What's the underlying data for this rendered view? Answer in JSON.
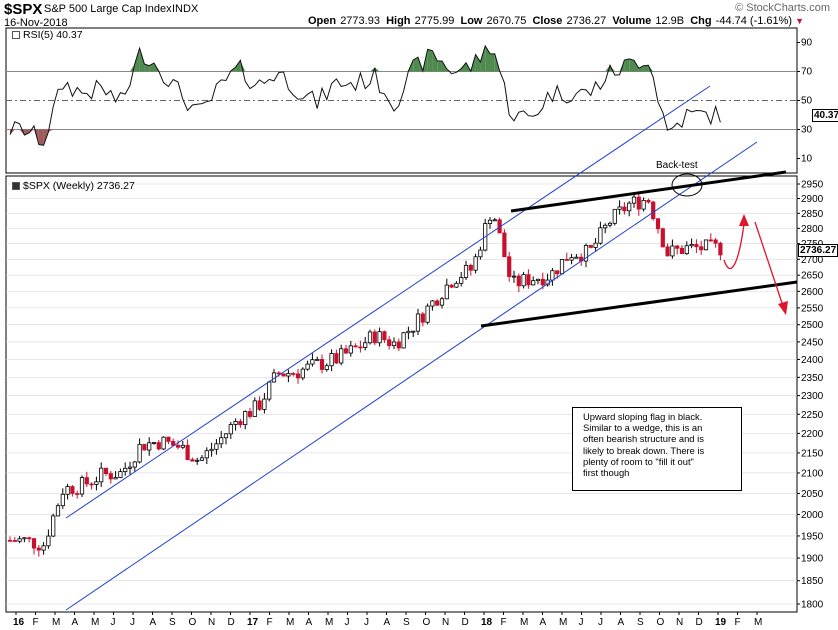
{
  "header": {
    "ticker": "$SPX",
    "name": "S&P 500 Large Cap Index",
    "exchange": "INDX",
    "date": "16-Nov-2018",
    "open_label": "Open",
    "open": "2773.93",
    "high_label": "High",
    "high": "2775.99",
    "low_label": "Low",
    "low": "2670.75",
    "close_label": "Close",
    "close": "2736.27",
    "volume_label": "Volume",
    "volume": "12.9B",
    "chg_label": "Chg",
    "chg": "-44.74 (-1.61%)",
    "brand": "© StockCharts.com"
  },
  "rsi_panel": {
    "label": "RSI(5) 40.37",
    "last_value": "40.37",
    "ticks": [
      "90",
      "70",
      "50",
      "30",
      "10"
    ],
    "overbought": 70,
    "oversold": 30
  },
  "price_panel": {
    "label": "$SPX (Weekly) 2736.27",
    "last_value": "2736.27",
    "ticks": [
      "2950",
      "2900",
      "2850",
      "2800",
      "2750",
      "2700",
      "2650",
      "2600",
      "2550",
      "2500",
      "2450",
      "2400",
      "2350",
      "2300",
      "2250",
      "2200",
      "2150",
      "2100",
      "2050",
      "2000",
      "1950",
      "1900",
      "1850",
      "1800"
    ]
  },
  "x_axis": {
    "labels": [
      "16",
      "F",
      "M",
      "A",
      "M",
      "J",
      "J",
      "A",
      "S",
      "O",
      "N",
      "D",
      "17",
      "F",
      "M",
      "A",
      "M",
      "J",
      "J",
      "A",
      "S",
      "O",
      "N",
      "D",
      "18",
      "F",
      "M",
      "A",
      "M",
      "J",
      "J",
      "A",
      "S",
      "O",
      "N",
      "D",
      "19",
      "F",
      "M"
    ],
    "bold": [
      "16",
      "17",
      "18",
      "19"
    ]
  },
  "annotations": {
    "back_test": "Back-test",
    "note_lines": [
      "Upward sloping flag in black.",
      "Similar to a wedge, this is an",
      "often bearish structure and is",
      "likely to break down. There is",
      "plenty of room to \"fill it out\"",
      "first though"
    ]
  },
  "colors": {
    "up_candle": "#000000",
    "down_candle": "#c8102e",
    "channel": "#1f3fd1",
    "flag": "#000000",
    "arrow": "#e0142a",
    "rsi_overbought_fill": "#4f8a4f",
    "rsi_oversold_fill": "#9e5a5a"
  },
  "chart_data": [
    {
      "type": "line",
      "title": "RSI(5)",
      "x": [
        "2016-01",
        "2016-02",
        "2016-03",
        "2016-04",
        "2016-05",
        "2016-06",
        "2016-07",
        "2016-08",
        "2016-09",
        "2016-10",
        "2016-11",
        "2016-12",
        "2017-01",
        "2017-02",
        "2017-03",
        "2017-04",
        "2017-05",
        "2017-06",
        "2017-07",
        "2017-08",
        "2017-09",
        "2017-10",
        "2017-11",
        "2017-12",
        "2018-01",
        "2018-02",
        "2018-03",
        "2018-04",
        "2018-05",
        "2018-06",
        "2018-07",
        "2018-08",
        "2018-09",
        "2018-10",
        "2018-11"
      ],
      "values": [
        30,
        22,
        62,
        55,
        58,
        48,
        84,
        72,
        55,
        40,
        58,
        72,
        60,
        70,
        58,
        48,
        62,
        62,
        66,
        48,
        72,
        82,
        70,
        74,
        90,
        40,
        38,
        55,
        55,
        55,
        68,
        75,
        80,
        28,
        40
      ],
      "ylim": [
        0,
        100
      ],
      "reference_lines": [
        70,
        50,
        30
      ]
    },
    {
      "type": "candlestick",
      "title": "$SPX (Weekly)",
      "x": [
        "2016-01",
        "2016-02",
        "2016-03",
        "2016-04",
        "2016-05",
        "2016-06",
        "2016-07",
        "2016-08",
        "2016-09",
        "2016-10",
        "2016-11",
        "2016-12",
        "2017-01",
        "2017-02",
        "2017-03",
        "2017-04",
        "2017-05",
        "2017-06",
        "2017-07",
        "2017-08",
        "2017-09",
        "2017-10",
        "2017-11",
        "2017-12",
        "2018-01",
        "2018-02",
        "2018-03",
        "2018-04",
        "2018-05",
        "2018-06",
        "2018-07",
        "2018-08",
        "2018-09",
        "2018-10",
        "2018-11"
      ],
      "close": [
        1940,
        1930,
        2060,
        2070,
        2095,
        2100,
        2170,
        2180,
        2165,
        2130,
        2180,
        2240,
        2270,
        2360,
        2365,
        2385,
        2400,
        2430,
        2470,
        2445,
        2500,
        2570,
        2640,
        2670,
        2870,
        2620,
        2640,
        2650,
        2720,
        2720,
        2820,
        2880,
        2900,
        2720,
        2736
      ],
      "ylim": [
        1800,
        2975
      ],
      "log_scale": true,
      "last": 2736.27
    }
  ]
}
